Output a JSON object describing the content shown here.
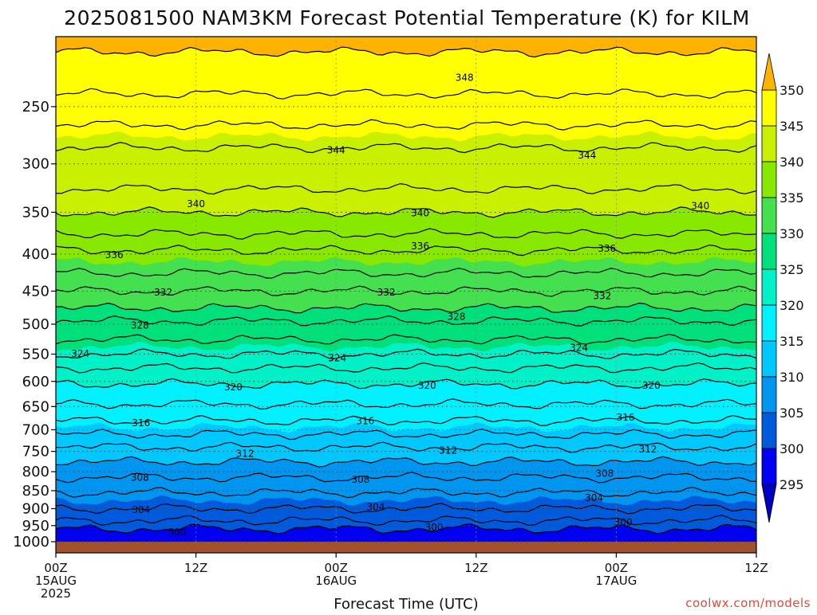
{
  "title": "2025081500 NAM3KM Forecast Potential Temperature (K) for KILM",
  "credit": "coolwx.com/models",
  "chart_data": {
    "type": "filled-contour",
    "title": "2025081500 NAM3KM Forecast Potential Temperature (K) for KILM",
    "xlabel": "Forecast Time (UTC)",
    "ylabel": "",
    "x_hours_range": [
      0,
      60
    ],
    "y_pressure_range_hpa": [
      1000,
      200
    ],
    "y_scale": "log",
    "grid": true,
    "x_ticks": [
      {
        "hour": 0,
        "line1": "00Z",
        "line2": "15AUG",
        "line3": "2025"
      },
      {
        "hour": 12,
        "line1": "12Z",
        "line2": "",
        "line3": ""
      },
      {
        "hour": 24,
        "line1": "00Z",
        "line2": "16AUG",
        "line3": ""
      },
      {
        "hour": 36,
        "line1": "12Z",
        "line2": "",
        "line3": ""
      },
      {
        "hour": 48,
        "line1": "00Z",
        "line2": "17AUG",
        "line3": ""
      },
      {
        "hour": 60,
        "line1": "12Z",
        "line2": "",
        "line3": ""
      }
    ],
    "y_ticks": [
      250,
      300,
      350,
      400,
      450,
      500,
      550,
      600,
      650,
      700,
      750,
      800,
      850,
      900,
      950,
      1000
    ],
    "colorbar": {
      "labels": [
        350,
        345,
        340,
        335,
        330,
        325,
        320,
        315,
        310,
        305,
        300,
        295
      ],
      "bands": [
        {
          "lo": 350,
          "hi": 355,
          "color": "#ffb300"
        },
        {
          "lo": 345,
          "hi": 350,
          "color": "#ffff00"
        },
        {
          "lo": 340,
          "hi": 345,
          "color": "#c8f000"
        },
        {
          "lo": 335,
          "hi": 340,
          "color": "#88e800"
        },
        {
          "lo": 330,
          "hi": 335,
          "color": "#44e050"
        },
        {
          "lo": 325,
          "hi": 330,
          "color": "#00e07a"
        },
        {
          "lo": 320,
          "hi": 325,
          "color": "#00f0c8"
        },
        {
          "lo": 315,
          "hi": 320,
          "color": "#00f0ff"
        },
        {
          "lo": 310,
          "hi": 315,
          "color": "#00c8ff"
        },
        {
          "lo": 305,
          "hi": 310,
          "color": "#0096f0"
        },
        {
          "lo": 300,
          "hi": 305,
          "color": "#005adc"
        },
        {
          "lo": 295,
          "hi": 300,
          "color": "#0000f0"
        },
        {
          "lo": 290,
          "hi": 295,
          "color": "#0000c0"
        }
      ]
    },
    "contour_interval_k": 2,
    "isentrope_mean_pressure_hpa": [
      {
        "theta": 300,
        "p": 960
      },
      {
        "theta": 302,
        "p": 935
      },
      {
        "theta": 304,
        "p": 900
      },
      {
        "theta": 306,
        "p": 855
      },
      {
        "theta": 308,
        "p": 815
      },
      {
        "theta": 310,
        "p": 775
      },
      {
        "theta": 312,
        "p": 740
      },
      {
        "theta": 314,
        "p": 710
      },
      {
        "theta": 316,
        "p": 680
      },
      {
        "theta": 318,
        "p": 645
      },
      {
        "theta": 320,
        "p": 605
      },
      {
        "theta": 322,
        "p": 575
      },
      {
        "theta": 324,
        "p": 550
      },
      {
        "theta": 326,
        "p": 525
      },
      {
        "theta": 328,
        "p": 495
      },
      {
        "theta": 330,
        "p": 475
      },
      {
        "theta": 332,
        "p": 450
      },
      {
        "theta": 334,
        "p": 425
      },
      {
        "theta": 336,
        "p": 395
      },
      {
        "theta": 338,
        "p": 375
      },
      {
        "theta": 340,
        "p": 350
      },
      {
        "theta": 342,
        "p": 325
      },
      {
        "theta": 344,
        "p": 285
      },
      {
        "theta": 346,
        "p": 265
      },
      {
        "theta": 348,
        "p": 240
      },
      {
        "theta": 350,
        "p": 210
      }
    ],
    "contour_labels": [
      {
        "text": "348",
        "hour": 35.0,
        "p": 228
      },
      {
        "text": "344",
        "hour": 24.0,
        "p": 287
      },
      {
        "text": "344",
        "hour": 45.5,
        "p": 292
      },
      {
        "text": "340",
        "hour": 12.0,
        "p": 341
      },
      {
        "text": "340",
        "hour": 31.2,
        "p": 351
      },
      {
        "text": "340",
        "hour": 55.2,
        "p": 343
      },
      {
        "text": "336",
        "hour": 5.0,
        "p": 401
      },
      {
        "text": "336",
        "hour": 31.2,
        "p": 390
      },
      {
        "text": "336",
        "hour": 47.2,
        "p": 393
      },
      {
        "text": "332",
        "hour": 9.2,
        "p": 452
      },
      {
        "text": "332",
        "hour": 28.3,
        "p": 452
      },
      {
        "text": "332",
        "hour": 46.8,
        "p": 457
      },
      {
        "text": "328",
        "hour": 7.2,
        "p": 502
      },
      {
        "text": "328",
        "hour": 34.3,
        "p": 488
      },
      {
        "text": "324",
        "hour": 2.1,
        "p": 549
      },
      {
        "text": "324",
        "hour": 24.1,
        "p": 557
      },
      {
        "text": "324",
        "hour": 44.8,
        "p": 539
      },
      {
        "text": "320",
        "hour": 15.2,
        "p": 611
      },
      {
        "text": "320",
        "hour": 31.8,
        "p": 608
      },
      {
        "text": "320",
        "hour": 51.0,
        "p": 608
      },
      {
        "text": "316",
        "hour": 7.3,
        "p": 685
      },
      {
        "text": "316",
        "hour": 26.5,
        "p": 681
      },
      {
        "text": "316",
        "hour": 48.8,
        "p": 673
      },
      {
        "text": "312",
        "hour": 16.2,
        "p": 755
      },
      {
        "text": "312",
        "hour": 33.6,
        "p": 748
      },
      {
        "text": "312",
        "hour": 50.7,
        "p": 745
      },
      {
        "text": "308",
        "hour": 7.2,
        "p": 815
      },
      {
        "text": "308",
        "hour": 26.1,
        "p": 820
      },
      {
        "text": "308",
        "hour": 47.0,
        "p": 805
      },
      {
        "text": "304",
        "hour": 7.3,
        "p": 903
      },
      {
        "text": "304",
        "hour": 27.4,
        "p": 895
      },
      {
        "text": "304",
        "hour": 46.1,
        "p": 870
      },
      {
        "text": "300",
        "hour": 10.4,
        "p": 970
      },
      {
        "text": "300",
        "hour": 32.4,
        "p": 955
      },
      {
        "text": "300",
        "hour": 48.6,
        "p": 940
      }
    ]
  }
}
